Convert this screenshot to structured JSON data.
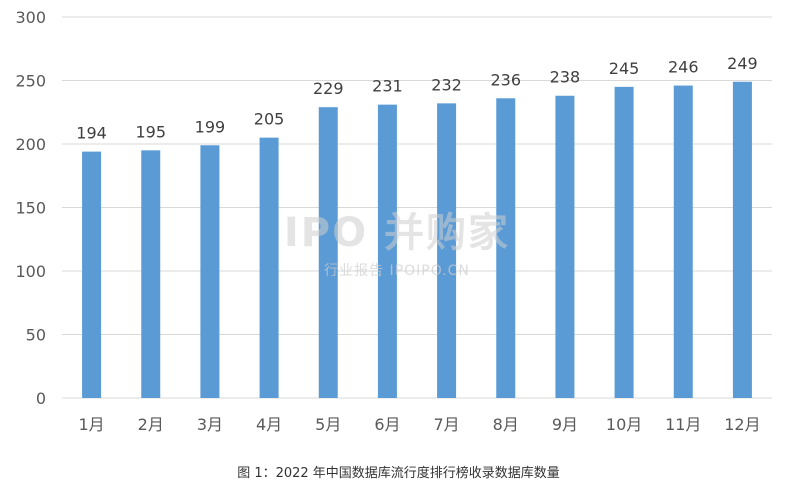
{
  "chart_data": {
    "type": "bar",
    "categories": [
      "1月",
      "2月",
      "3月",
      "4月",
      "5月",
      "6月",
      "7月",
      "8月",
      "9月",
      "10月",
      "11月",
      "12月"
    ],
    "values": [
      194,
      195,
      199,
      205,
      229,
      231,
      232,
      236,
      238,
      245,
      246,
      249
    ],
    "title": "",
    "xlabel": "",
    "ylabel": "",
    "ylim": [
      0,
      300
    ],
    "yticks": [
      0,
      50,
      100,
      150,
      200,
      250,
      300
    ],
    "grid": true,
    "data_labels": true,
    "bar_color": "#5B9BD5",
    "grid_color": "#D9D9D9"
  },
  "caption": "图 1：2022 年中国数据库流行度排行榜收录数据库数量",
  "watermark": {
    "main": "IPO 并购家",
    "sub": "行业报告 IPOIPO.CN"
  }
}
